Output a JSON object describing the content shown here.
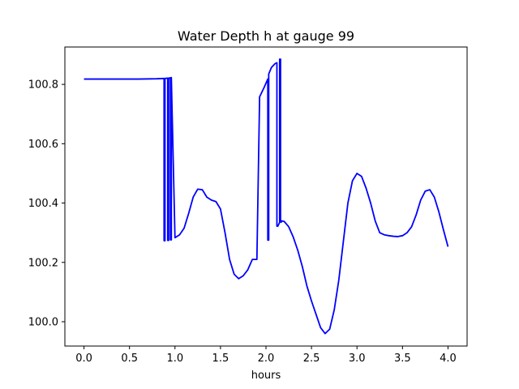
{
  "chart_data": {
    "type": "line",
    "title": "Water Depth h at gauge 99",
    "xlabel": "hours",
    "ylabel": "",
    "xlim": [
      -0.21,
      4.21
    ],
    "ylim": [
      99.918,
      100.926
    ],
    "xticks": [
      0.0,
      0.5,
      1.0,
      1.5,
      2.0,
      2.5,
      3.0,
      3.5,
      4.0
    ],
    "xtick_labels": [
      "0.0",
      "0.5",
      "1.0",
      "1.5",
      "2.0",
      "2.5",
      "3.0",
      "3.5",
      "4.0"
    ],
    "yticks": [
      100.0,
      100.2,
      100.4,
      100.6,
      100.8
    ],
    "ytick_labels": [
      "100.0",
      "100.2",
      "100.4",
      "100.6",
      "100.8"
    ],
    "grid": false,
    "legend": "none",
    "series": [
      {
        "color": "#0000ff",
        "x": [
          0.0,
          0.3,
          0.6,
          0.8,
          0.88,
          0.88,
          0.89,
          0.89,
          0.92,
          0.92,
          0.93,
          0.93,
          0.95,
          0.95,
          0.96,
          0.96,
          1.0,
          1.05,
          1.1,
          1.15,
          1.2,
          1.25,
          1.3,
          1.35,
          1.4,
          1.45,
          1.5,
          1.55,
          1.6,
          1.65,
          1.7,
          1.75,
          1.8,
          1.85,
          1.9,
          1.93,
          1.93,
          1.98,
          2.02,
          2.02,
          2.03,
          2.03,
          2.06,
          2.1,
          2.12,
          2.12,
          2.13,
          2.15,
          2.15,
          2.16,
          2.16,
          2.17,
          2.17,
          2.2,
          2.25,
          2.3,
          2.35,
          2.4,
          2.45,
          2.5,
          2.55,
          2.6,
          2.65,
          2.7,
          2.75,
          2.8,
          2.85,
          2.9,
          2.95,
          3.0,
          3.05,
          3.1,
          3.15,
          3.2,
          3.25,
          3.3,
          3.35,
          3.4,
          3.45,
          3.5,
          3.55,
          3.6,
          3.65,
          3.7,
          3.75,
          3.8,
          3.85,
          3.9,
          3.95,
          4.0
        ],
        "y": [
          100.818,
          100.818,
          100.818,
          100.819,
          100.82,
          100.273,
          100.273,
          100.82,
          100.821,
          100.274,
          100.274,
          100.821,
          100.822,
          100.276,
          100.276,
          100.823,
          100.283,
          100.293,
          100.315,
          100.365,
          100.42,
          100.447,
          100.445,
          100.42,
          100.41,
          100.405,
          100.38,
          100.3,
          100.21,
          100.16,
          100.145,
          100.155,
          100.175,
          100.21,
          100.21,
          100.758,
          100.758,
          100.79,
          100.818,
          100.275,
          100.275,
          100.835,
          100.857,
          100.87,
          100.873,
          100.322,
          100.322,
          100.335,
          100.885,
          100.885,
          100.336,
          100.336,
          100.34,
          100.338,
          100.32,
          100.285,
          100.24,
          100.185,
          100.12,
          100.07,
          100.025,
          99.98,
          99.96,
          99.975,
          100.04,
          100.14,
          100.27,
          100.4,
          100.475,
          100.5,
          100.49,
          100.45,
          100.4,
          100.34,
          100.3,
          100.293,
          100.29,
          100.288,
          100.287,
          100.29,
          100.3,
          100.32,
          100.36,
          100.41,
          100.44,
          100.445,
          100.42,
          100.37,
          100.31,
          100.253
        ]
      }
    ]
  }
}
